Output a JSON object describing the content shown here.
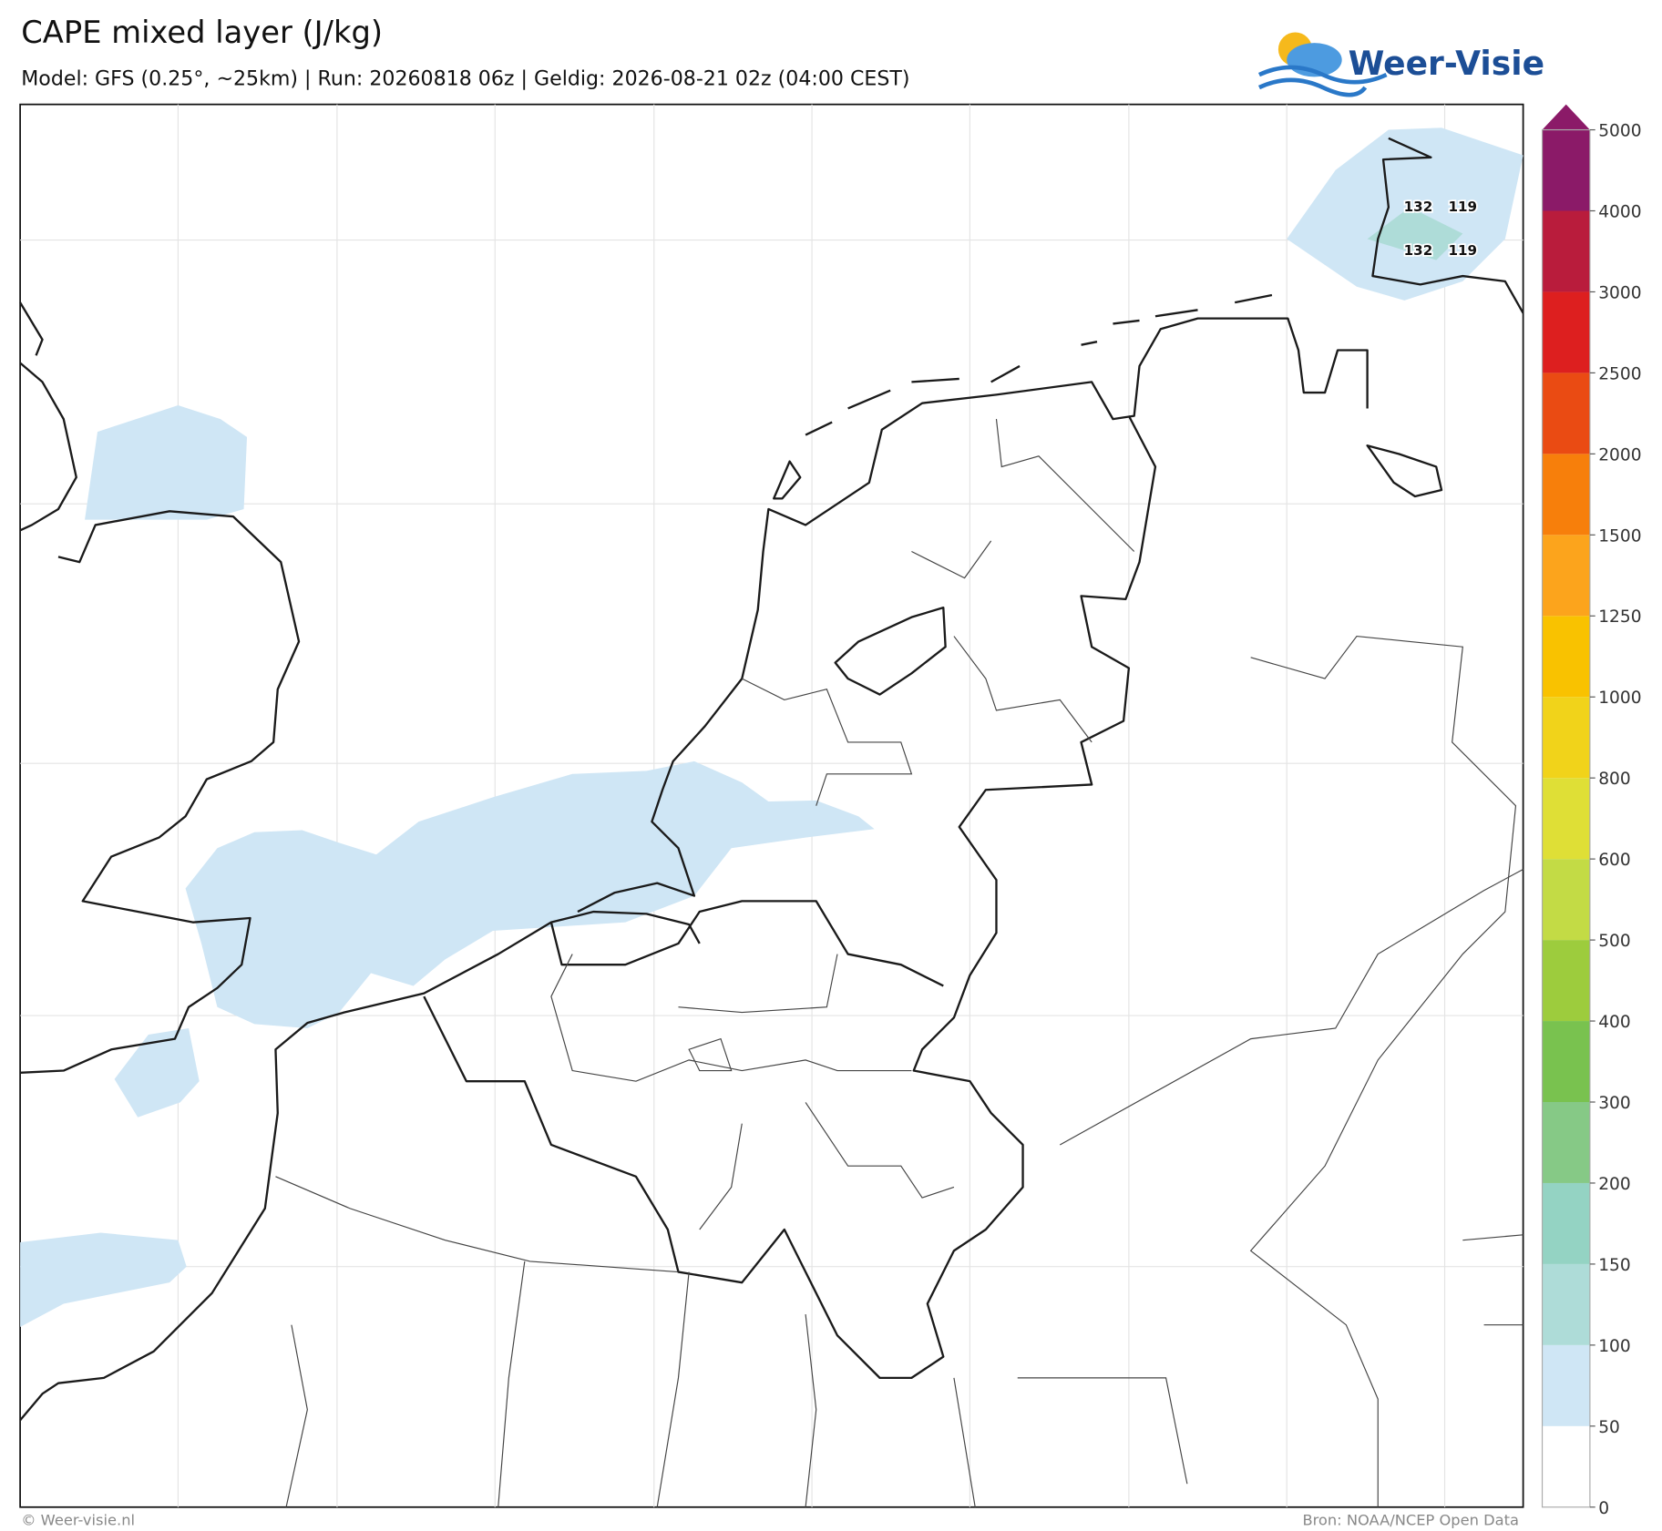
{
  "header": {
    "title": "CAPE mixed layer (J/kg)",
    "subtitle": "Model: GFS (0.25°, ~25km)  |  Run: 20260818 06z  |  Geldig: 2026-08-21 02z (04:00 CEST)",
    "logo": "Weer-Visie"
  },
  "colorbar": {
    "levels": [
      0,
      50,
      100,
      150,
      200,
      300,
      400,
      500,
      600,
      800,
      1000,
      1250,
      1500,
      2000,
      2500,
      3000,
      4000,
      5000
    ],
    "colors": [
      "#ffffff",
      "#cfe6f5",
      "#aedcd8",
      "#94d3c3",
      "#86c986",
      "#79c24f",
      "#9dcc3d",
      "#c3db45",
      "#dfdf36",
      "#f1d31a",
      "#f9c200",
      "#fca41c",
      "#f77f0b",
      "#ea4b13",
      "#dd1f1f",
      "#b91c3c",
      "#8b1a68"
    ],
    "extend_color": "#8b1a68"
  },
  "map": {
    "point_labels": [
      "132",
      "119",
      "132",
      "119"
    ]
  },
  "footer": {
    "left": "© Weer-visie.nl",
    "right": "Bron: NOAA/NCEP Open Data"
  }
}
